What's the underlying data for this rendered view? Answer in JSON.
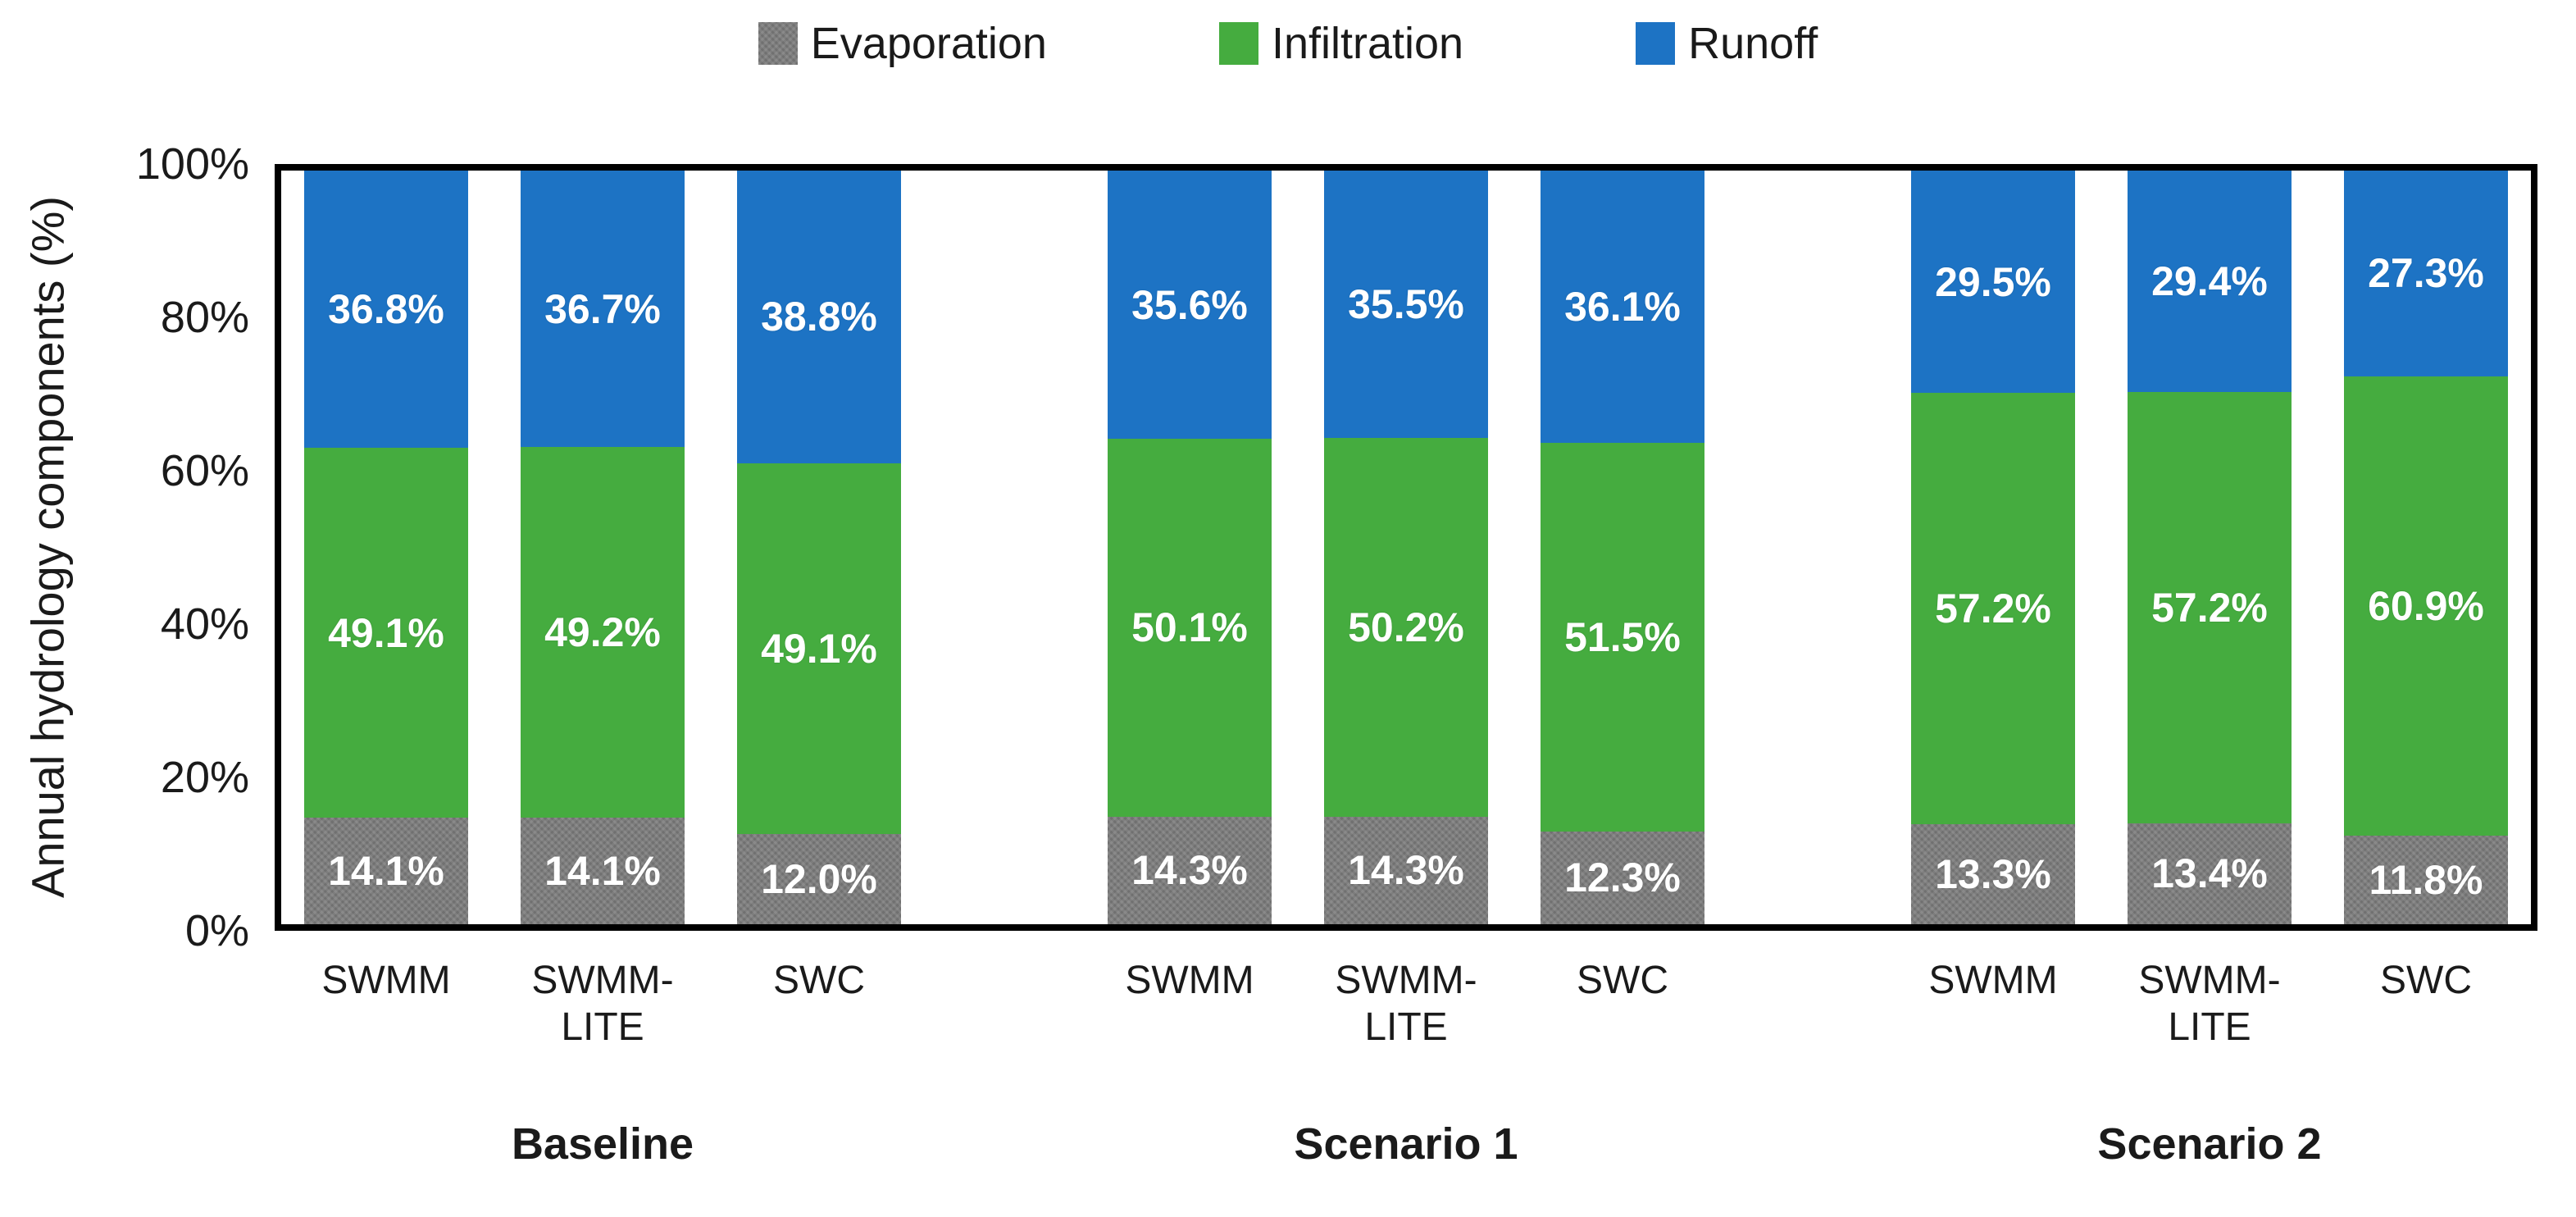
{
  "chart_data": {
    "type": "bar",
    "stacked": true,
    "title": "",
    "ylabel": "Annual hydrology components (%)",
    "xlabel": "",
    "ylim": [
      0,
      100
    ],
    "yticks": [
      {
        "value": 100,
        "label": "100%"
      },
      {
        "value": 80,
        "label": "80%"
      },
      {
        "value": 60,
        "label": "60%"
      },
      {
        "value": 40,
        "label": "40%"
      },
      {
        "value": 20,
        "label": "20%"
      },
      {
        "value": 0,
        "label": "0%"
      }
    ],
    "grid": false,
    "legend_position": "top",
    "series": [
      {
        "name": "Evaporation",
        "color": "#7d7d7d",
        "pattern": "weave"
      },
      {
        "name": "Infiltration",
        "color": "#45ac3f",
        "pattern": "solid"
      },
      {
        "name": "Runoff",
        "color": "#1d73c4",
        "pattern": "solid"
      }
    ],
    "label_color": "#ffffff",
    "axis_color": "#000000",
    "groups": [
      {
        "label": "Baseline",
        "bars": [
          {
            "category": "SWMM",
            "Evaporation": 14.1,
            "Infiltration": 49.1,
            "Runoff": 36.8
          },
          {
            "category": "SWMM-LITE",
            "Evaporation": 14.1,
            "Infiltration": 49.2,
            "Runoff": 36.7
          },
          {
            "category": "SWC",
            "Evaporation": 12.0,
            "Infiltration": 49.1,
            "Runoff": 38.8
          }
        ]
      },
      {
        "label": "Scenario 1",
        "bars": [
          {
            "category": "SWMM",
            "Evaporation": 14.3,
            "Infiltration": 50.1,
            "Runoff": 35.6
          },
          {
            "category": "SWMM-LITE",
            "Evaporation": 14.3,
            "Infiltration": 50.2,
            "Runoff": 35.5
          },
          {
            "category": "SWC",
            "Evaporation": 12.3,
            "Infiltration": 51.5,
            "Runoff": 36.1
          }
        ]
      },
      {
        "label": "Scenario 2",
        "bars": [
          {
            "category": "SWMM",
            "Evaporation": 13.3,
            "Infiltration": 57.2,
            "Runoff": 29.5
          },
          {
            "category": "SWMM-LITE",
            "Evaporation": 13.4,
            "Infiltration": 57.2,
            "Runoff": 29.4
          },
          {
            "category": "SWC",
            "Evaporation": 11.8,
            "Infiltration": 60.9,
            "Runoff": 27.3
          }
        ]
      }
    ]
  }
}
